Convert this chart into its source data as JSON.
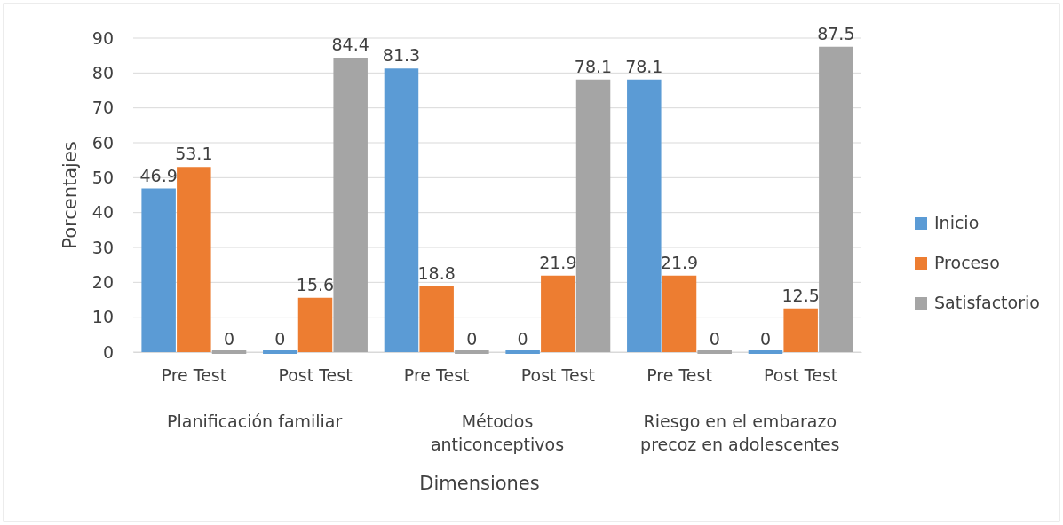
{
  "chart_data": {
    "type": "bar",
    "xlabel": "Dimensiones",
    "ylabel": "Porcentajes",
    "categories": [
      "Pre Test",
      "Post Test",
      "Pre Test",
      "Post Test",
      "Pre Test",
      "Post Test"
    ],
    "annotations": [
      "Planificación familiar",
      "Métodos anticonceptivos",
      "Riesgo en el embarazo precoz en adolescentes"
    ],
    "series": [
      {
        "name": "Inicio",
        "color": "#5b9bd5",
        "values": [
          46.9,
          0,
          81.3,
          0,
          78.1,
          0
        ]
      },
      {
        "name": "Proceso",
        "color": "#ed7d31",
        "values": [
          53.1,
          15.6,
          18.8,
          21.9,
          21.9,
          12.5
        ]
      },
      {
        "name": "Satisfactorio",
        "color": "#a5a5a5",
        "values": [
          0,
          84.4,
          0,
          78.1,
          0,
          87.5
        ]
      }
    ],
    "ylim": [
      0,
      90
    ],
    "yticks": [
      0,
      10,
      20,
      30,
      40,
      50,
      60,
      70,
      80,
      90
    ],
    "grid": "y",
    "legend": "right",
    "data_labels": true
  }
}
